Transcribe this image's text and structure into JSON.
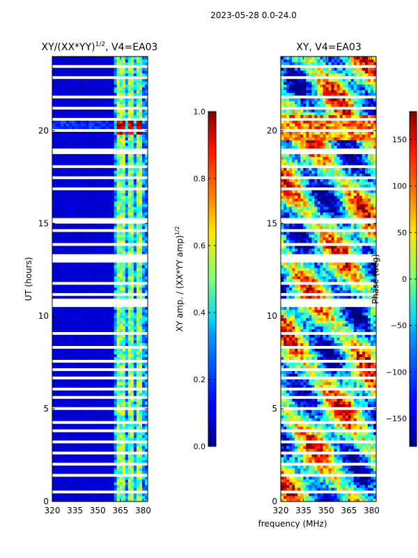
{
  "figure_title": "2023-05-28 0.0-24.0",
  "shared_xlabel": "frequency (MHz)",
  "chart_data": [
    {
      "type": "heatmap",
      "title_main": "XY/(XX*YY)",
      "title_sup": "1/2",
      "title_tail": ", V4=EA03",
      "xlabel": "frequency (MHz)",
      "ylabel": "UT (hours)",
      "x_ticks": [
        320,
        335,
        350,
        365,
        380
      ],
      "y_ticks": [
        0,
        5,
        10,
        15,
        20
      ],
      "xlim": [
        320,
        383
      ],
      "ylim": [
        0,
        24
      ],
      "colorbar": {
        "label": "XY amp. / (XX*YY amp)",
        "label_sup": "1/2",
        "range": [
          0.0,
          1.0
        ],
        "ticks": [
          "0.0",
          "0.2",
          "0.4",
          "0.6",
          "0.8",
          "1.0"
        ],
        "tick_values": [
          0.0,
          0.2,
          0.4,
          0.6,
          0.8,
          1.0
        ],
        "colormap": "jet"
      }
    },
    {
      "type": "heatmap",
      "title": "XY, V4=EA03",
      "xlabel": "frequency (MHz)",
      "ylabel": "",
      "x_ticks": [
        320,
        335,
        350,
        365,
        380
      ],
      "y_ticks": [
        0,
        5,
        10,
        15,
        20
      ],
      "xlim": [
        320,
        383
      ],
      "ylim": [
        0,
        24
      ],
      "colorbar": {
        "label": "Phase (deg)",
        "range": [
          -180,
          180
        ],
        "ticks": [
          "−150",
          "−100",
          "−50",
          "0",
          "50",
          "100",
          "150"
        ],
        "tick_values": [
          -150,
          -100,
          -50,
          0,
          50,
          100,
          150
        ],
        "colormap": "jet"
      }
    }
  ]
}
